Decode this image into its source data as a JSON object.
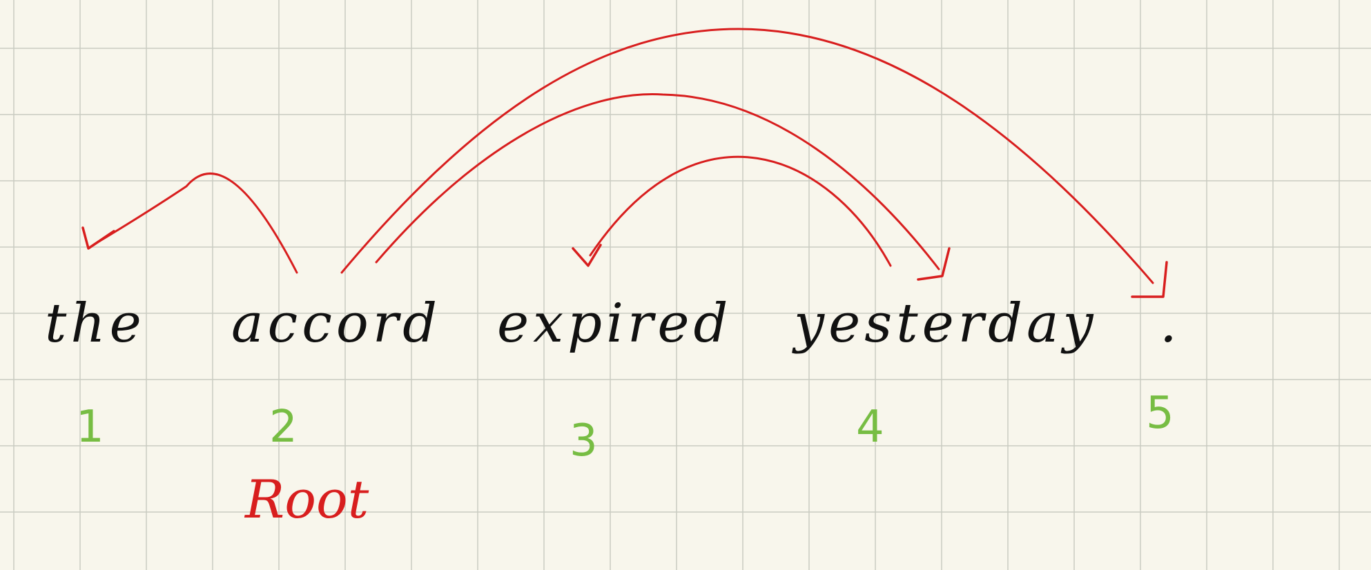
{
  "colors": {
    "background": "#f8f6ec",
    "grid": "#c9cbc1",
    "word": "#111111",
    "index": "#77bd43",
    "arc": "#d81e1e",
    "root": "#d81e1e"
  },
  "tokens": [
    {
      "index": "1",
      "word": "the"
    },
    {
      "index": "2",
      "word": "accord"
    },
    {
      "index": "3",
      "word": "expired"
    },
    {
      "index": "4",
      "word": "yesterday"
    },
    {
      "index": "5",
      "word": "."
    }
  ],
  "root": {
    "label": "Root",
    "token_index": "2"
  },
  "arcs": [
    {
      "head": "2",
      "dependent": "1"
    },
    {
      "head": "4",
      "dependent": "3"
    },
    {
      "head": "2",
      "dependent": "4"
    },
    {
      "head": "2",
      "dependent": "5"
    }
  ]
}
